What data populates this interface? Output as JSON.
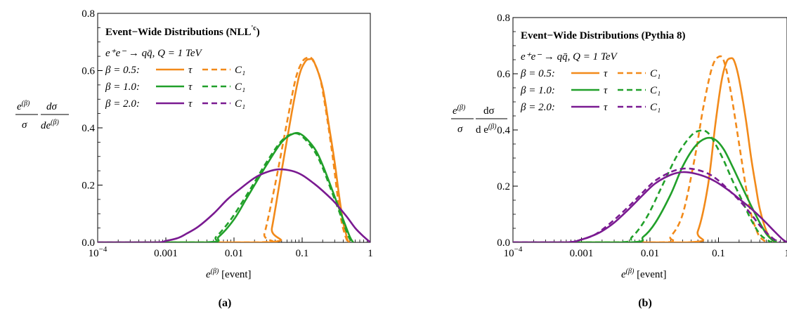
{
  "colors": {
    "beta05": "#f28a1a",
    "beta10": "#21a02a",
    "beta20": "#7a1a91"
  },
  "chart_data": [
    {
      "type": "line",
      "panel": "a",
      "caption": "(a)",
      "x_log": true,
      "xlim": [
        0.0001,
        1
      ],
      "ylim": [
        0,
        0.8
      ],
      "xticks": [
        "10^-4",
        "0.001",
        "0.01",
        "0.1",
        "1"
      ],
      "yticks": [
        "0.0",
        "0.2",
        "0.4",
        "0.6",
        "0.8"
      ],
      "xlabel_main": "e",
      "xlabel_sup": "(β)",
      "xlabel_tail": " [event]",
      "ylabel_parts": {
        "n1": "e",
        "n1sup": "(β)",
        "d1": "σ",
        "n2": "dσ",
        "d2": "de",
        "d2sup": "(β)"
      },
      "legend": {
        "title": "Event−Wide Distributions (NLL",
        "title_sup": "'c",
        "title_end": ")",
        "process": "e⁺e⁻ → qq̄, Q = 1 TeV",
        "rows": [
          {
            "beta": "β = 0.5:",
            "solid": "τ",
            "dashed": "C₁"
          },
          {
            "beta": "β = 1.0:",
            "solid": "τ",
            "dashed": "C₁"
          },
          {
            "beta": "β = 2.0:",
            "solid": "τ",
            "dashed": "C₁"
          }
        ]
      },
      "series": [
        {
          "name": "β = 0.5 τ",
          "style": "solid",
          "color": "beta05",
          "x": [
            0.0001,
            0.031,
            0.036,
            0.05,
            0.07,
            0.09,
            0.11,
            0.13,
            0.15,
            0.2,
            0.25,
            0.3,
            0.35,
            0.4,
            0.44,
            0.46,
            0.48,
            0.5
          ],
          "y": [
            0,
            0,
            0.05,
            0.25,
            0.45,
            0.58,
            0.63,
            0.64,
            0.63,
            0.54,
            0.4,
            0.28,
            0.16,
            0.07,
            0.03,
            0.01,
            0.002,
            0
          ]
        },
        {
          "name": "β = 0.5 C₁",
          "style": "dashed",
          "color": "beta05",
          "x": [
            0.0001,
            0.024,
            0.028,
            0.04,
            0.06,
            0.08,
            0.1,
            0.12,
            0.14,
            0.18,
            0.22,
            0.28,
            0.34,
            0.38,
            0.42,
            0.45,
            0.47
          ],
          "y": [
            0,
            0,
            0.03,
            0.2,
            0.42,
            0.57,
            0.63,
            0.645,
            0.64,
            0.58,
            0.47,
            0.3,
            0.14,
            0.07,
            0.03,
            0.01,
            0
          ]
        },
        {
          "name": "β = 1.0 τ",
          "style": "solid",
          "color": "beta10",
          "x": [
            0.0001,
            0.004,
            0.006,
            0.01,
            0.015,
            0.02,
            0.03,
            0.05,
            0.075,
            0.1,
            0.15,
            0.2,
            0.3,
            0.4,
            0.5,
            0.56
          ],
          "y": [
            0,
            0,
            0.02,
            0.08,
            0.15,
            0.2,
            0.27,
            0.35,
            0.38,
            0.375,
            0.33,
            0.27,
            0.16,
            0.08,
            0.02,
            0
          ]
        },
        {
          "name": "β = 1.0 C₁",
          "style": "dashed",
          "color": "beta10",
          "x": [
            0.0001,
            0.0038,
            0.0055,
            0.009,
            0.014,
            0.02,
            0.03,
            0.05,
            0.075,
            0.1,
            0.15,
            0.2,
            0.3,
            0.4,
            0.48,
            0.54
          ],
          "y": [
            0,
            0,
            0.02,
            0.08,
            0.15,
            0.21,
            0.28,
            0.355,
            0.38,
            0.37,
            0.32,
            0.26,
            0.15,
            0.07,
            0.02,
            0
          ]
        },
        {
          "name": "β = 2.0 τ",
          "style": "solid",
          "color": "beta20",
          "x": [
            0.0001,
            0.0007,
            0.001,
            0.0015,
            0.002,
            0.003,
            0.005,
            0.008,
            0.012,
            0.02,
            0.03,
            0.045,
            0.07,
            0.1,
            0.15,
            0.2,
            0.3,
            0.45,
            0.6,
            0.8,
            1.0
          ],
          "y": [
            0,
            0,
            0.005,
            0.015,
            0.03,
            0.055,
            0.1,
            0.15,
            0.185,
            0.225,
            0.245,
            0.255,
            0.25,
            0.235,
            0.205,
            0.18,
            0.14,
            0.09,
            0.05,
            0.02,
            0
          ]
        }
      ]
    },
    {
      "type": "line",
      "panel": "b",
      "caption": "(b)",
      "x_log": true,
      "xlim": [
        0.0001,
        1
      ],
      "ylim": [
        0,
        0.8
      ],
      "xticks": [
        "10^-4",
        "0.001",
        "0.01",
        "0.1",
        "1"
      ],
      "yticks": [
        "0.0",
        "0.2",
        "0.4",
        "0.6",
        "0.8"
      ],
      "xlabel_main": "e",
      "xlabel_sup": "(β)",
      "xlabel_tail": " [event]",
      "ylabel_parts": {
        "n1": "e",
        "n1sup": "(β)",
        "d1": "σ",
        "n2": "dσ",
        "d2": "d e",
        "d2sup": "(β)"
      },
      "legend": {
        "title": "Event−Wide Distributions (Pythia 8)",
        "title_sup": "",
        "title_end": "",
        "process": "e⁺e⁻ → qq̄, Q = 1 TeV",
        "rows": [
          {
            "beta": "β = 0.5:",
            "solid": "τ",
            "dashed": "C₁"
          },
          {
            "beta": "β = 1.0:",
            "solid": "τ",
            "dashed": "C₁"
          },
          {
            "beta": "β = 2.0:",
            "solid": "τ",
            "dashed": "C₁"
          }
        ]
      },
      "series": [
        {
          "name": "β = 0.5 τ",
          "style": "solid",
          "color": "beta05",
          "x": [
            0.0001,
            0.035,
            0.05,
            0.07,
            0.09,
            0.11,
            0.13,
            0.15,
            0.17,
            0.2,
            0.25,
            0.3,
            0.35,
            0.4,
            0.5,
            0.6,
            0.7
          ],
          "y": [
            0,
            0,
            0.04,
            0.2,
            0.42,
            0.57,
            0.64,
            0.655,
            0.645,
            0.58,
            0.44,
            0.3,
            0.2,
            0.12,
            0.04,
            0.01,
            0
          ]
        },
        {
          "name": "β = 0.5 C₁",
          "style": "dashed",
          "color": "beta05",
          "x": [
            0.0001,
            0.015,
            0.02,
            0.03,
            0.045,
            0.06,
            0.08,
            0.1,
            0.12,
            0.15,
            0.2,
            0.25,
            0.3,
            0.35,
            0.4,
            0.5
          ],
          "y": [
            0,
            0,
            0.02,
            0.1,
            0.3,
            0.48,
            0.62,
            0.66,
            0.645,
            0.54,
            0.35,
            0.2,
            0.1,
            0.05,
            0.02,
            0
          ]
        },
        {
          "name": "β = 1.0 τ",
          "style": "solid",
          "color": "beta10",
          "x": [
            0.0001,
            0.005,
            0.008,
            0.012,
            0.02,
            0.03,
            0.045,
            0.065,
            0.09,
            0.12,
            0.16,
            0.2,
            0.3,
            0.4,
            0.5,
            0.6,
            0.7
          ],
          "y": [
            0,
            0,
            0.02,
            0.07,
            0.17,
            0.27,
            0.34,
            0.37,
            0.365,
            0.33,
            0.27,
            0.22,
            0.13,
            0.07,
            0.03,
            0.01,
            0
          ]
        },
        {
          "name": "β = 1.0 C₁",
          "style": "dashed",
          "color": "beta10",
          "x": [
            0.0001,
            0.0035,
            0.0055,
            0.009,
            0.015,
            0.025,
            0.04,
            0.055,
            0.07,
            0.09,
            0.12,
            0.16,
            0.22,
            0.3,
            0.4,
            0.5,
            0.6
          ],
          "y": [
            0,
            0,
            0.02,
            0.09,
            0.2,
            0.31,
            0.38,
            0.398,
            0.39,
            0.35,
            0.29,
            0.22,
            0.15,
            0.08,
            0.03,
            0.01,
            0
          ]
        },
        {
          "name": "β = 2.0 τ",
          "style": "solid",
          "color": "beta20",
          "x": [
            0.0001,
            0.0006,
            0.001,
            0.0015,
            0.002,
            0.003,
            0.005,
            0.008,
            0.012,
            0.02,
            0.03,
            0.045,
            0.07,
            0.1,
            0.15,
            0.2,
            0.3,
            0.45,
            0.65,
            0.85,
            1.0
          ],
          "y": [
            0,
            0,
            0.01,
            0.025,
            0.04,
            0.07,
            0.12,
            0.17,
            0.21,
            0.24,
            0.25,
            0.245,
            0.23,
            0.21,
            0.18,
            0.155,
            0.12,
            0.08,
            0.04,
            0.012,
            0
          ]
        },
        {
          "name": "β = 2.0 C₁",
          "style": "dashed",
          "color": "beta20",
          "x": [
            0.0001,
            0.0006,
            0.001,
            0.0015,
            0.002,
            0.003,
            0.005,
            0.008,
            0.012,
            0.02,
            0.03,
            0.045,
            0.07,
            0.1,
            0.15,
            0.2,
            0.3,
            0.4,
            0.55,
            0.7,
            0.8
          ],
          "y": [
            0,
            0,
            0.01,
            0.025,
            0.045,
            0.08,
            0.13,
            0.18,
            0.22,
            0.25,
            0.262,
            0.26,
            0.245,
            0.22,
            0.18,
            0.15,
            0.1,
            0.06,
            0.025,
            0.005,
            0
          ]
        }
      ]
    }
  ]
}
